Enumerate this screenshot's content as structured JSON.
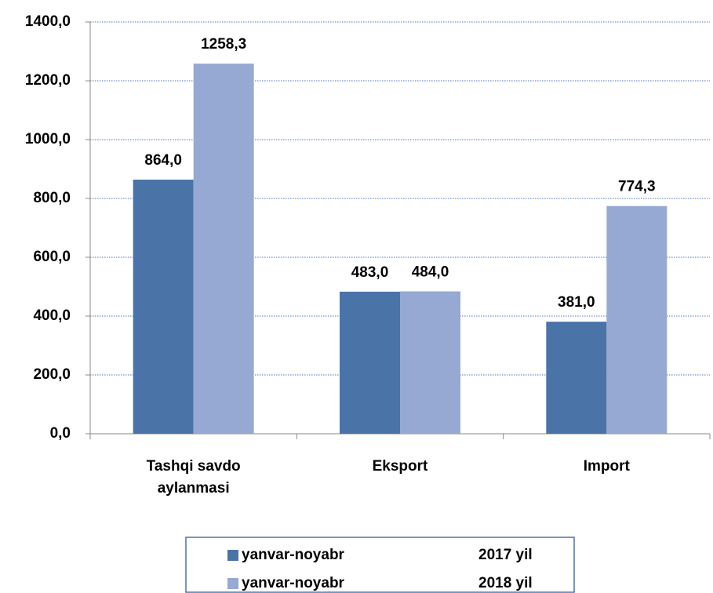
{
  "chart_data": {
    "type": "bar",
    "categories": [
      "Tashqi savdo aylanmasi",
      "Eksport",
      "Import"
    ],
    "series": [
      {
        "name": "yanvar-noyabr 2017 yil",
        "color": "#4a74a8",
        "values": [
          864.0,
          483.0,
          381.0
        ],
        "value_labels": [
          "864,0",
          "483,0",
          "381,0"
        ]
      },
      {
        "name": "yanvar-noyabr 2018 yil",
        "color": "#95a9d3",
        "values": [
          1258.3,
          484.0,
          774.3
        ],
        "value_labels": [
          "1258,3",
          "484,0",
          "774,3"
        ]
      }
    ],
    "ylim": [
      0,
      1400
    ],
    "yticks": [
      {
        "value": 0,
        "label": "0,0"
      },
      {
        "value": 200,
        "label": "200,0"
      },
      {
        "value": 400,
        "label": "400,0"
      },
      {
        "value": 600,
        "label": "600,0"
      },
      {
        "value": 800,
        "label": "800,0"
      },
      {
        "value": 1000,
        "label": "1000,0"
      },
      {
        "value": 1200,
        "label": "1200,0"
      },
      {
        "value": 1400,
        "label": "1400,0"
      }
    ],
    "grid": true
  }
}
